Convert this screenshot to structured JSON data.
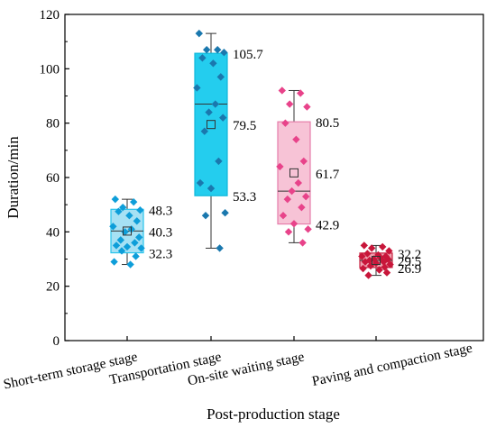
{
  "chart_data": {
    "type": "boxplot",
    "xlabel": "Post-production stage",
    "ylabel": "Duration/min",
    "ylim": [
      0,
      120
    ],
    "yticks": [
      0,
      20,
      40,
      60,
      80,
      100,
      120
    ],
    "grid": false,
    "categories": [
      "Short-term storage stage",
      "Transportation stage",
      "On-site waiting stage",
      "Paving and compaction stage"
    ],
    "boxes": [
      {
        "name": "Short-term storage stage",
        "q1": 32.3,
        "median": 40.3,
        "q3": 48.3,
        "mean": 40.3,
        "whisker_low": 28,
        "whisker_high": 52,
        "labels": {
          "q3": "48.3",
          "mean": "40.3",
          "q1": "32.3"
        },
        "color": "#29C4EC",
        "fill": "#A6E1F4",
        "marker_color": "#0E9ED9",
        "points": [
          52,
          51,
          49,
          48,
          47.5,
          46,
          44,
          42,
          41,
          40,
          38,
          37,
          36,
          35,
          34.5,
          34,
          33,
          31,
          29,
          28
        ]
      },
      {
        "name": "Transportation stage",
        "q1": 53.3,
        "median": 87,
        "q3": 105.7,
        "mean": 79.5,
        "whisker_low": 34,
        "whisker_high": 113,
        "labels": {
          "q3": "105.7",
          "mean": "79.5",
          "q1": "53.3"
        },
        "color": "#0FB8DB",
        "fill": "#24CDEE",
        "marker_color": "#1A78AE",
        "points": [
          113,
          107,
          107,
          106,
          104,
          102,
          97,
          93,
          87,
          84,
          82,
          77,
          66,
          58,
          56,
          47,
          46,
          34
        ]
      },
      {
        "name": "On-site waiting stage",
        "q1": 42.9,
        "median": 55,
        "q3": 80.5,
        "mean": 61.7,
        "whisker_low": 36,
        "whisker_high": 92,
        "labels": {
          "q3": "80.5",
          "mean": "61.7",
          "q1": "42.9"
        },
        "color": "#E77DAA",
        "fill": "#F7C3D6",
        "marker_color": "#E8438A",
        "points": [
          92,
          91,
          87,
          86,
          80,
          74,
          66,
          64,
          58,
          55,
          53,
          52,
          49,
          46,
          43,
          41,
          40,
          36
        ]
      },
      {
        "name": "Paving and compaction stage",
        "q1": 26.9,
        "median": 29.5,
        "q3": 32.2,
        "mean": 29.5,
        "whisker_low": 24,
        "whisker_high": 35,
        "labels": {
          "q3": "32.2",
          "mean": "29.5",
          "q1": "26.9"
        },
        "color": "#C7213F",
        "fill": "#EE9FAE",
        "marker_color": "#C8163A",
        "points": [
          35,
          34.5,
          34,
          33,
          32,
          31.5,
          31,
          31,
          30.5,
          30,
          30,
          29.5,
          29,
          29,
          28.5,
          28,
          27.5,
          27,
          26.5,
          26,
          25,
          24
        ]
      }
    ]
  }
}
